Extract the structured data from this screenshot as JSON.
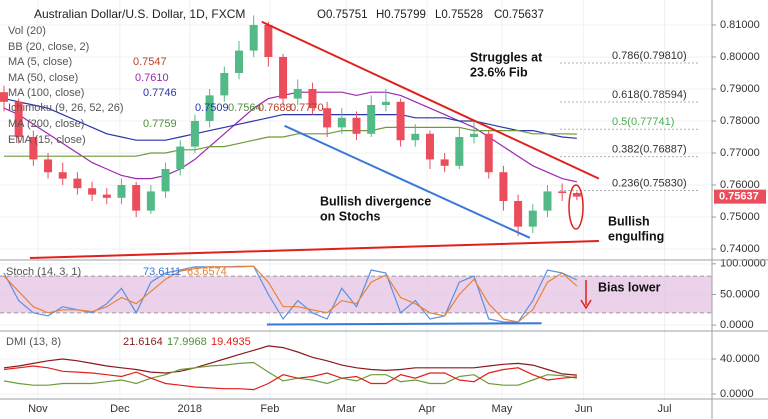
{
  "chart_data": [
    {
      "type": "candlestick",
      "title": "Australian Dollar/U.S. Dollar, 1D, FXCM",
      "header_readouts": [
        "O0.75751",
        "H0.75799",
        "L0.75528",
        "C0.75637"
      ],
      "legend_rows": [
        {
          "name": "Vol (20)"
        },
        {
          "name": "BB (20, close, 2)"
        },
        {
          "name": "MA (5, close)",
          "readouts": [
            "0.7547"
          ],
          "readout_colors": [
            "#b5432c"
          ]
        },
        {
          "name": "MA (50, close)",
          "readouts": [
            "0.7610"
          ],
          "readout_colors": [
            "#9c27b0"
          ]
        },
        {
          "name": "MA (100, close)",
          "readouts": [
            "0.7746"
          ],
          "readout_colors": [
            "#2a35a8"
          ]
        },
        {
          "name": "Ichimoku (9, 26, 52, 26)",
          "readouts": [
            "0.7509",
            "0.7564",
            "0.7688",
            "0.7770"
          ],
          "readout_colors": [
            "#2a35a8",
            "#4f8f3a",
            "#b5432c",
            "#c0392b"
          ]
        },
        {
          "name": "MA (200, close)",
          "readouts": [
            "0.7759"
          ],
          "readout_colors": [
            "#4f8f3a"
          ]
        },
        {
          "name": "EMA (15, close)"
        }
      ],
      "up_color": "#53b987",
      "down_color": "#eb4d5c",
      "open": [
        0.789,
        0.786,
        0.775,
        0.768,
        0.764,
        0.762,
        0.759,
        0.757,
        0.756,
        0.76,
        0.752,
        0.758,
        0.765,
        0.772,
        0.78,
        0.788,
        0.795,
        0.802,
        0.81,
        0.8,
        0.787,
        0.79,
        0.784,
        0.778,
        0.781,
        0.776,
        0.785,
        0.786,
        0.774,
        0.776,
        0.768,
        0.766,
        0.775,
        0.776,
        0.764,
        0.755,
        0.747,
        0.752,
        0.758,
        0.75751
      ],
      "high": [
        0.791,
        0.787,
        0.777,
        0.77,
        0.767,
        0.764,
        0.761,
        0.759,
        0.762,
        0.761,
        0.76,
        0.767,
        0.774,
        0.782,
        0.79,
        0.797,
        0.805,
        0.813,
        0.811,
        0.801,
        0.793,
        0.792,
        0.786,
        0.784,
        0.783,
        0.788,
        0.79,
        0.787,
        0.779,
        0.777,
        0.77,
        0.778,
        0.78,
        0.777,
        0.766,
        0.757,
        0.754,
        0.76,
        0.7605,
        0.75799
      ],
      "low": [
        0.783,
        0.773,
        0.766,
        0.762,
        0.76,
        0.757,
        0.755,
        0.754,
        0.754,
        0.75,
        0.751,
        0.756,
        0.763,
        0.77,
        0.778,
        0.786,
        0.793,
        0.8,
        0.797,
        0.785,
        0.785,
        0.782,
        0.775,
        0.776,
        0.774,
        0.775,
        0.783,
        0.772,
        0.772,
        0.765,
        0.764,
        0.765,
        0.773,
        0.762,
        0.752,
        0.744,
        0.745,
        0.75,
        0.755,
        0.75528
      ],
      "close": [
        0.786,
        0.775,
        0.768,
        0.764,
        0.762,
        0.759,
        0.757,
        0.756,
        0.76,
        0.752,
        0.758,
        0.765,
        0.772,
        0.78,
        0.788,
        0.795,
        0.802,
        0.81,
        0.8,
        0.787,
        0.79,
        0.784,
        0.778,
        0.781,
        0.776,
        0.785,
        0.786,
        0.774,
        0.776,
        0.768,
        0.766,
        0.775,
        0.776,
        0.764,
        0.755,
        0.747,
        0.752,
        0.758,
        0.7575,
        0.75637
      ],
      "series": [
        {
          "color": "#9c27b0",
          "values": [
            0.784,
            0.782,
            0.779,
            0.776,
            0.773,
            0.77,
            0.767,
            0.765,
            0.763,
            0.762,
            0.762,
            0.763,
            0.765,
            0.768,
            0.772,
            0.776,
            0.78,
            0.784,
            0.787,
            0.788,
            0.789,
            0.789,
            0.789,
            0.789,
            0.788,
            0.789,
            0.789,
            0.788,
            0.786,
            0.784,
            0.782,
            0.78,
            0.778,
            0.775,
            0.772,
            0.769,
            0.766,
            0.764,
            0.762,
            0.761
          ]
        },
        {
          "color": "#2a35a8",
          "values": [
            0.787,
            0.786,
            0.785,
            0.784,
            0.782,
            0.78,
            0.778,
            0.776,
            0.775,
            0.774,
            0.774,
            0.774,
            0.775,
            0.776,
            0.777,
            0.778,
            0.779,
            0.78,
            0.781,
            0.782,
            0.782,
            0.782,
            0.782,
            0.782,
            0.782,
            0.782,
            0.782,
            0.782,
            0.781,
            0.781,
            0.781,
            0.78,
            0.78,
            0.779,
            0.778,
            0.777,
            0.777,
            0.776,
            0.775,
            0.7746
          ]
        },
        {
          "color": "#6d9b3a",
          "values": [
            0.769,
            0.769,
            0.769,
            0.769,
            0.769,
            0.769,
            0.769,
            0.769,
            0.769,
            0.769,
            0.77,
            0.77,
            0.771,
            0.771,
            0.772,
            0.772,
            0.773,
            0.774,
            0.775,
            0.775,
            0.776,
            0.776,
            0.776,
            0.777,
            0.777,
            0.777,
            0.778,
            0.778,
            0.778,
            0.778,
            0.778,
            0.778,
            0.777,
            0.777,
            0.777,
            0.777,
            0.776,
            0.776,
            0.776,
            0.7759
          ]
        }
      ],
      "trendlines": [
        {
          "color": "#e0201b",
          "x": [
            17.55,
            40.5
          ],
          "y": [
            0.811,
            0.762
          ]
        },
        {
          "color": "#e0201b",
          "x": [
            1.77,
            40.5
          ],
          "y": [
            0.7372,
            0.7425
          ]
        },
        {
          "color": "#3a78d8",
          "x": [
            19.1,
            35.8
          ],
          "y": [
            0.7785,
            0.7435
          ]
        }
      ],
      "fib_levels": [
        {
          "label": "0.786(0.79810)",
          "value": 0.7981,
          "color": "#333333"
        },
        {
          "label": "0.618(0.78594)",
          "value": 0.78594,
          "color": "#333333"
        },
        {
          "label": "0.5(0.77741)",
          "value": 0.77741,
          "color": "#4caf50"
        },
        {
          "label": "0.382(0.76887)",
          "value": 0.76887,
          "color": "#333333"
        },
        {
          "label": "0.236(0.75830)",
          "value": 0.7583,
          "color": "#333333"
        }
      ],
      "annotations": [
        {
          "lines": [
            "Struggles at",
            "23.6% Fib"
          ]
        },
        {
          "lines": [
            "Bullish divergence",
            "on Stochs"
          ]
        },
        {
          "lines": [
            "Bullish",
            "engulfing"
          ]
        }
      ],
      "ylim": [
        0.7372,
        0.8178
      ],
      "yticks": [
        {
          "value": 0.81,
          "label": "0.81000"
        },
        {
          "value": 0.8,
          "label": "0.80000"
        },
        {
          "value": 0.79,
          "label": "0.79000"
        },
        {
          "value": 0.78,
          "label": "0.78000"
        },
        {
          "value": 0.77,
          "label": "0.77000"
        },
        {
          "value": 0.76,
          "label": "0.76000"
        },
        {
          "value": 0.75,
          "label": "0.75000"
        },
        {
          "value": 0.74,
          "label": "0.74000"
        }
      ],
      "grid": true
    },
    {
      "type": "line",
      "title": "Stoch (14, 3, 1)",
      "readouts": [
        "73.6111",
        "63.6574"
      ],
      "readout_colors": [
        "#3a78d8",
        "#e8823a"
      ],
      "bands": [
        20,
        80
      ],
      "band_color": "#e4c3e3",
      "series": [
        {
          "color": "#5b8fe0",
          "values": [
            85,
            40,
            20,
            15,
            30,
            25,
            20,
            35,
            60,
            20,
            70,
            85,
            90,
            95,
            95,
            95,
            96,
            96,
            50,
            10,
            40,
            20,
            10,
            60,
            30,
            90,
            85,
            20,
            40,
            10,
            15,
            70,
            80,
            10,
            5,
            5,
            40,
            90,
            85,
            73.6111
          ]
        },
        {
          "color": "#e8823a",
          "values": [
            80,
            55,
            30,
            20,
            25,
            25,
            22,
            30,
            45,
            35,
            55,
            75,
            88,
            92,
            95,
            95,
            95,
            96,
            70,
            30,
            30,
            25,
            20,
            40,
            35,
            70,
            82,
            45,
            35,
            20,
            15,
            50,
            75,
            35,
            10,
            5,
            25,
            70,
            85,
            63.6574
          ]
        }
      ],
      "trendlines": [
        {
          "color": "#3a78d8",
          "x": [
            17.9,
            36.6
          ],
          "y": [
            1,
            3
          ]
        }
      ],
      "annotations": [
        {
          "lines": [
            "Bias lower"
          ]
        }
      ],
      "ylim": [
        -8,
        103
      ],
      "yticks": [
        {
          "value": 100,
          "label": "100.0000"
        },
        {
          "value": 50,
          "label": "50.0000"
        },
        {
          "value": 0,
          "label": "0.0000"
        }
      ],
      "grid": true
    },
    {
      "type": "line",
      "title": "DMI (13, 8)",
      "readouts": [
        "21.6164",
        "17.9968",
        "19.4935"
      ],
      "readout_colors": [
        "#8b1a1a",
        "#4f8f3a",
        "#e0201b"
      ],
      "series": [
        {
          "color": "#8b1a1a",
          "values": [
            30,
            32,
            35,
            38,
            40,
            38,
            35,
            32,
            30,
            28,
            25,
            24,
            26,
            30,
            35,
            40,
            45,
            50,
            55,
            53,
            48,
            42,
            38,
            33,
            30,
            28,
            27,
            28,
            30,
            30,
            30,
            30,
            30,
            32,
            34,
            35,
            33,
            28,
            23,
            21.6164
          ]
        },
        {
          "color": "#6d9b3a",
          "values": [
            15,
            12,
            10,
            10,
            12,
            12,
            12,
            14,
            16,
            12,
            18,
            22,
            28,
            30,
            32,
            33,
            35,
            36,
            25,
            15,
            18,
            16,
            12,
            18,
            15,
            22,
            22,
            14,
            16,
            12,
            12,
            20,
            22,
            12,
            10,
            10,
            16,
            22,
            21,
            17.9968
          ]
        },
        {
          "color": "#e0201b",
          "values": [
            28,
            30,
            32,
            30,
            26,
            25,
            24,
            22,
            20,
            25,
            18,
            12,
            10,
            8,
            7,
            6,
            6,
            5,
            12,
            22,
            18,
            20,
            24,
            18,
            20,
            12,
            12,
            22,
            18,
            24,
            24,
            16,
            14,
            24,
            28,
            30,
            22,
            16,
            18,
            19.4935
          ]
        }
      ],
      "ylim": [
        -4.6,
        70.9
      ],
      "yticks": [
        {
          "value": 40,
          "label": "40.0000"
        },
        {
          "value": 0,
          "label": "0.0000"
        }
      ],
      "xlim": [
        -0.27,
        48.2
      ],
      "xticks": [
        {
          "value": 2.31,
          "label": "Nov"
        },
        {
          "value": 7.89,
          "label": "Dec"
        },
        {
          "value": 12.65,
          "label": "2018"
        },
        {
          "value": 18.1,
          "label": "Feb"
        },
        {
          "value": 23.3,
          "label": "Mar"
        },
        {
          "value": 28.8,
          "label": "Apr"
        },
        {
          "value": 33.9,
          "label": "May"
        },
        {
          "value": 39.46,
          "label": "Jun"
        },
        {
          "value": 44.97,
          "label": "Jul"
        }
      ],
      "grid": true
    }
  ]
}
